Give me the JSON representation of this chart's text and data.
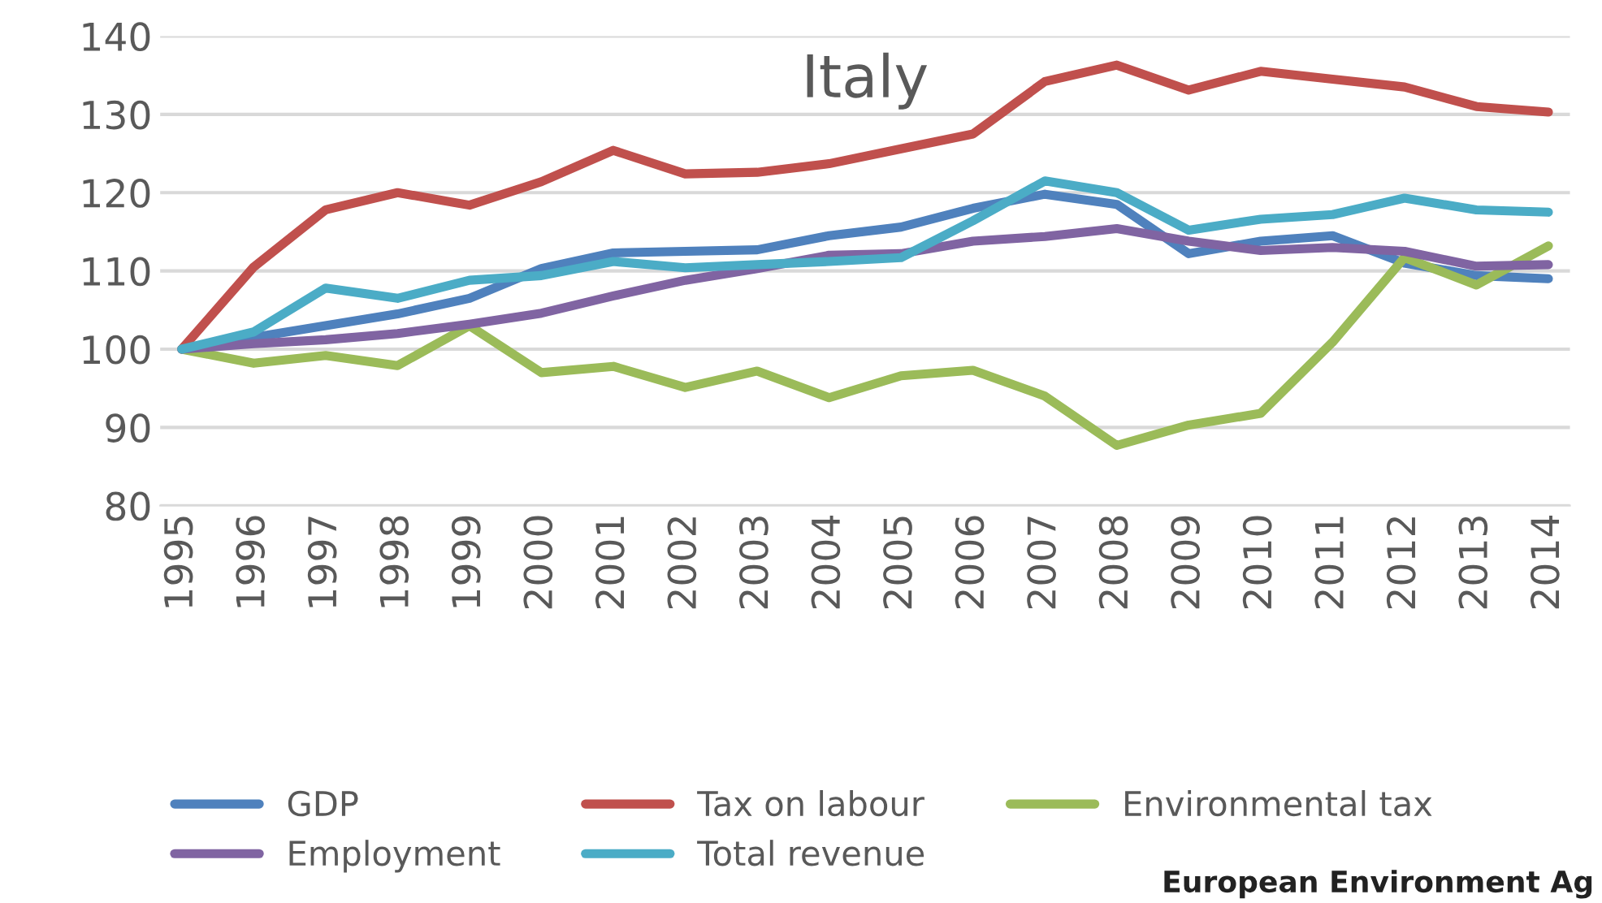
{
  "chart_data": {
    "type": "line",
    "title": "Italy",
    "categories": [
      "1995",
      "1996",
      "1997",
      "1998",
      "1999",
      "2000",
      "2001",
      "2002",
      "2003",
      "2004",
      "2005",
      "2006",
      "2007",
      "2008",
      "2009",
      "2010",
      "2011",
      "2012",
      "2013",
      "2014"
    ],
    "series": [
      {
        "name": "GDP",
        "color": "#4f81bd",
        "values": [
          100,
          101.5,
          103,
          104.5,
          106.5,
          110.3,
          112.3,
          112.5,
          112.7,
          114.5,
          115.6,
          118,
          119.8,
          118.5,
          112.2,
          113.8,
          114.5,
          111,
          109.4,
          109
        ]
      },
      {
        "name": "Tax on labour",
        "color": "#c0504d",
        "values": [
          100,
          110.5,
          117.8,
          120,
          118.4,
          121.4,
          125.4,
          122.4,
          122.6,
          123.7,
          125.6,
          127.5,
          134.2,
          136.3,
          133.1,
          135.5,
          134.5,
          133.5,
          131,
          130.3
        ]
      },
      {
        "name": "Environmental tax",
        "color": "#9bbb59",
        "values": [
          100,
          98.2,
          99.2,
          97.9,
          103,
          97,
          97.8,
          95.1,
          97.2,
          93.8,
          96.6,
          97.3,
          94,
          87.7,
          90.3,
          91.8,
          100.9,
          111.7,
          108.2,
          113.2
        ]
      },
      {
        "name": "Employment",
        "color": "#8064a2",
        "values": [
          100,
          100.7,
          101.2,
          102,
          103.2,
          104.6,
          106.8,
          108.8,
          110.3,
          112,
          112.2,
          113.8,
          114.4,
          115.4,
          113.8,
          112.6,
          113,
          112.5,
          110.6,
          110.8
        ]
      },
      {
        "name": "Total revenue",
        "color": "#4bacc6",
        "values": [
          100,
          102.2,
          107.8,
          106.5,
          108.8,
          109.4,
          111.2,
          110.4,
          110.8,
          111.2,
          111.7,
          116.4,
          121.5,
          120,
          115.2,
          116.6,
          117.2,
          119.3,
          117.8,
          117.5
        ]
      }
    ],
    "ylim": [
      80,
      140
    ],
    "yticks": [
      80,
      90,
      100,
      110,
      120,
      130,
      140
    ],
    "grid": "y",
    "legend": "bottom",
    "marker": "none",
    "line_style": "solid",
    "annotations": [
      "European Environment Ag"
    ]
  }
}
